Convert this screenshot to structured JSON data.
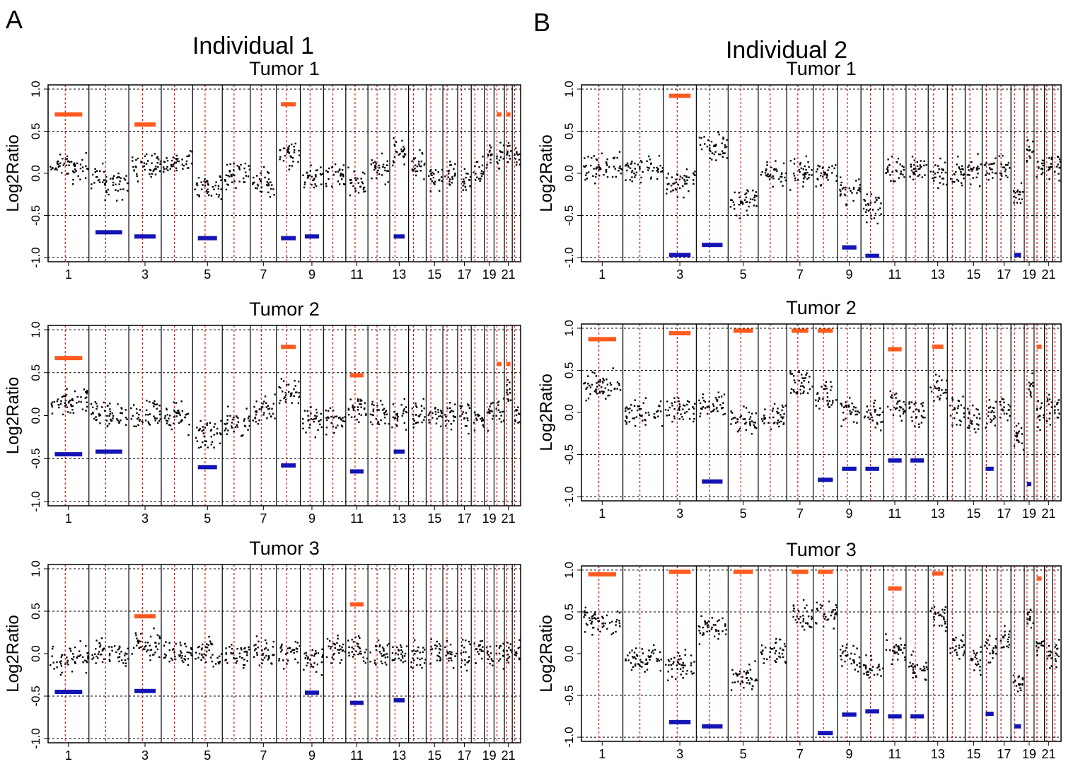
{
  "panels": [
    {
      "letter": "A",
      "title": "Individual 1"
    },
    {
      "letter": "B",
      "title": "Individual 2"
    }
  ],
  "colors": {
    "gain": "#ff5a1f",
    "loss": "#1414b4",
    "divider": "#e0140f",
    "points": "#000000",
    "grid": "#000000"
  },
  "chart_data": [
    {
      "type": "scatter",
      "panel": "A",
      "title": "Tumor 1",
      "ylabel": "Log2Ratio",
      "ylim": [
        -1.05,
        1.05
      ],
      "yticks": [
        "1.0",
        "0.5",
        "0.0",
        "-0.5",
        "-1.0"
      ],
      "gridlines": [
        1.0,
        0.5,
        -0.5,
        -1.0
      ],
      "xlabels": [
        "1",
        "3",
        "5",
        "7",
        "9",
        "11",
        "13",
        "15",
        "17",
        "19",
        "21"
      ],
      "chromosomes": 22,
      "segments": [
        0.07,
        -0.1,
        0.1,
        0.12,
        -0.15,
        0.0,
        -0.1,
        0.25,
        -0.05,
        0.0,
        -0.1,
        0.05,
        0.25,
        0.1,
        -0.05,
        0.0,
        -0.1,
        0.05,
        0.2,
        0.2,
        0.3,
        0.2
      ],
      "gains": [
        {
          "chr": 1,
          "value": 0.7
        },
        {
          "chr": 3,
          "value": 0.58
        },
        {
          "chr": 8,
          "value": 0.82
        },
        {
          "chr": 20,
          "value": 0.7
        },
        {
          "chr": 21,
          "value": 0.7
        }
      ],
      "losses": [
        {
          "chr": 2,
          "value": -0.7
        },
        {
          "chr": 3,
          "value": -0.75
        },
        {
          "chr": 5,
          "value": -0.77
        },
        {
          "chr": 8,
          "value": -0.77
        },
        {
          "chr": 9,
          "value": -0.75
        },
        {
          "chr": 13,
          "value": -0.75
        }
      ]
    },
    {
      "type": "scatter",
      "panel": "A",
      "title": "Tumor 2",
      "ylabel": "Log2Ratio",
      "ylim": [
        -1.05,
        1.05
      ],
      "yticks": [
        "1.0",
        "0.5",
        "0.0",
        "-0.5",
        "-1.0"
      ],
      "gridlines": [
        1.0,
        0.5,
        -0.5,
        -1.0
      ],
      "xlabels": [
        "1",
        "3",
        "5",
        "7",
        "9",
        "11",
        "13",
        "15",
        "17",
        "19",
        "21"
      ],
      "chromosomes": 22,
      "segments": [
        0.15,
        0.0,
        0.02,
        0.0,
        -0.22,
        -0.1,
        0.05,
        0.25,
        -0.05,
        -0.05,
        0.1,
        0.0,
        0.0,
        0.0,
        0.0,
        0.0,
        0.0,
        0.0,
        0.05,
        0.05,
        0.3,
        0.0
      ],
      "gains": [
        {
          "chr": 1,
          "value": 0.67
        },
        {
          "chr": 8,
          "value": 0.8
        },
        {
          "chr": 11,
          "value": 0.47
        },
        {
          "chr": 20,
          "value": 0.6
        },
        {
          "chr": 21,
          "value": 0.6
        }
      ],
      "losses": [
        {
          "chr": 1,
          "value": -0.45
        },
        {
          "chr": 2,
          "value": -0.42
        },
        {
          "chr": 5,
          "value": -0.6
        },
        {
          "chr": 8,
          "value": -0.58
        },
        {
          "chr": 11,
          "value": -0.65
        },
        {
          "chr": 13,
          "value": -0.42
        }
      ]
    },
    {
      "type": "scatter",
      "panel": "A",
      "title": "Tumor 3",
      "ylabel": "Log2Ratio",
      "ylim": [
        -1.05,
        1.05
      ],
      "yticks": [
        "1.0",
        "0.5",
        "0.0",
        "-0.5",
        "-1.0"
      ],
      "gridlines": [
        1.0,
        0.5,
        -0.5,
        -1.0
      ],
      "xlabels": [
        "1",
        "3",
        "5",
        "7",
        "9",
        "11",
        "13",
        "15",
        "17",
        "19",
        "21"
      ],
      "chromosomes": 22,
      "segments": [
        -0.05,
        0.0,
        0.12,
        0.0,
        0.0,
        0.0,
        0.0,
        0.0,
        -0.05,
        0.05,
        0.05,
        0.0,
        0.0,
        0.0,
        0.0,
        0.0,
        0.0,
        0.0,
        0.0,
        0.0,
        0.0,
        0.0
      ],
      "gains": [
        {
          "chr": 3,
          "value": 0.44
        },
        {
          "chr": 11,
          "value": 0.58
        }
      ],
      "losses": [
        {
          "chr": 1,
          "value": -0.45
        },
        {
          "chr": 3,
          "value": -0.44
        },
        {
          "chr": 9,
          "value": -0.46
        },
        {
          "chr": 11,
          "value": -0.58
        },
        {
          "chr": 13,
          "value": -0.55
        }
      ]
    },
    {
      "type": "scatter",
      "panel": "B",
      "title": "Tumor 1",
      "ylabel": "Log2Ratio",
      "ylim": [
        -1.05,
        1.05
      ],
      "yticks": [
        "1.0",
        "0.5",
        "0.0",
        "-0.5",
        "-1.0"
      ],
      "gridlines": [
        1.0,
        0.5,
        -0.5,
        -1.0
      ],
      "xlabels": [
        "1",
        "3",
        "5",
        "7",
        "9",
        "11",
        "13",
        "15",
        "17",
        "19",
        "21"
      ],
      "chromosomes": 22,
      "segments": [
        0.05,
        0.05,
        -0.1,
        0.3,
        -0.35,
        0.0,
        0.0,
        0.0,
        -0.2,
        -0.4,
        0.0,
        0.05,
        0.0,
        0.0,
        0.05,
        0.05,
        0.05,
        -0.25,
        0.25,
        0.1,
        0.1,
        0.1
      ],
      "gains": [
        {
          "chr": 3,
          "value": 0.92
        }
      ],
      "losses": [
        {
          "chr": 3,
          "value": -0.97
        },
        {
          "chr": 4,
          "value": -0.85
        },
        {
          "chr": 9,
          "value": -0.88
        },
        {
          "chr": 10,
          "value": -0.98
        },
        {
          "chr": 18,
          "value": -0.97
        }
      ]
    },
    {
      "type": "scatter",
      "panel": "B",
      "title": "Tumor 2",
      "ylabel": "Log2Ratio",
      "ylim": [
        -1.05,
        1.05
      ],
      "yticks": [
        "1.0",
        "0.5",
        "0.0",
        "-0.5",
        "-1.0"
      ],
      "gridlines": [
        1.0,
        0.5,
        -0.5,
        -1.0
      ],
      "xlabels": [
        "1",
        "3",
        "5",
        "7",
        "9",
        "11",
        "13",
        "15",
        "17",
        "19",
        "21"
      ],
      "chromosomes": 22,
      "segments": [
        0.3,
        0.0,
        0.05,
        0.1,
        -0.1,
        -0.05,
        0.35,
        0.2,
        0.0,
        -0.05,
        0.1,
        0.0,
        0.3,
        0.0,
        -0.1,
        0.0,
        0.05,
        -0.3,
        0.3,
        0.0,
        0.0,
        0.0
      ],
      "gains": [
        {
          "chr": 1,
          "value": 0.87
        },
        {
          "chr": 3,
          "value": 0.94
        },
        {
          "chr": 5,
          "value": 0.97
        },
        {
          "chr": 7,
          "value": 0.97
        },
        {
          "chr": 8,
          "value": 0.97
        },
        {
          "chr": 11,
          "value": 0.75
        },
        {
          "chr": 13,
          "value": 0.78
        },
        {
          "chr": 20,
          "value": 0.78
        }
      ],
      "losses": [
        {
          "chr": 4,
          "value": -0.82
        },
        {
          "chr": 8,
          "value": -0.8
        },
        {
          "chr": 9,
          "value": -0.67
        },
        {
          "chr": 10,
          "value": -0.67
        },
        {
          "chr": 11,
          "value": -0.57
        },
        {
          "chr": 12,
          "value": -0.57
        },
        {
          "chr": 16,
          "value": -0.67
        },
        {
          "chr": 19,
          "value": -0.85
        }
      ]
    },
    {
      "type": "scatter",
      "panel": "B",
      "title": "Tumor 3",
      "ylabel": "Log2Ratio",
      "ylim": [
        -1.05,
        1.05
      ],
      "yticks": [
        "1.0",
        "0.5",
        "0.0",
        "-0.5",
        "-1.0"
      ],
      "gridlines": [
        1.0,
        0.5,
        -0.5,
        -1.0
      ],
      "xlabels": [
        "1",
        "3",
        "5",
        "7",
        "9",
        "11",
        "13",
        "15",
        "17",
        "19",
        "21"
      ],
      "chromosomes": 22,
      "segments": [
        0.4,
        -0.05,
        -0.15,
        0.3,
        -0.3,
        0.0,
        0.45,
        0.5,
        -0.05,
        -0.2,
        0.05,
        -0.15,
        0.45,
        0.1,
        -0.05,
        0.05,
        0.2,
        -0.35,
        0.4,
        0.1,
        0.0,
        0.0
      ],
      "gains": [
        {
          "chr": 1,
          "value": 0.95
        },
        {
          "chr": 3,
          "value": 0.98
        },
        {
          "chr": 5,
          "value": 0.98
        },
        {
          "chr": 7,
          "value": 0.98
        },
        {
          "chr": 8,
          "value": 0.98
        },
        {
          "chr": 11,
          "value": 0.78
        },
        {
          "chr": 13,
          "value": 0.96
        },
        {
          "chr": 20,
          "value": 0.9
        }
      ],
      "losses": [
        {
          "chr": 3,
          "value": -0.82
        },
        {
          "chr": 4,
          "value": -0.87
        },
        {
          "chr": 8,
          "value": -0.95
        },
        {
          "chr": 9,
          "value": -0.73
        },
        {
          "chr": 10,
          "value": -0.69
        },
        {
          "chr": 11,
          "value": -0.75
        },
        {
          "chr": 12,
          "value": -0.75
        },
        {
          "chr": 16,
          "value": -0.72
        },
        {
          "chr": 18,
          "value": -0.87
        }
      ]
    }
  ]
}
